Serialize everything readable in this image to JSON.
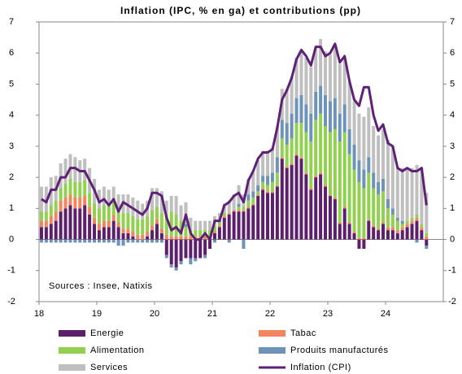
{
  "chart_data": {
    "type": "bar",
    "stacked": true,
    "title": "Inflation (IPC, % en ga) et contributions (pp)",
    "annotation": "Sources : Insee, Natixis",
    "categories": [
      "18",
      null,
      null,
      null,
      null,
      null,
      null,
      null,
      null,
      null,
      null,
      null,
      "19",
      null,
      null,
      null,
      null,
      null,
      null,
      null,
      null,
      null,
      null,
      null,
      "20",
      null,
      null,
      null,
      null,
      null,
      null,
      null,
      null,
      null,
      null,
      null,
      "21",
      null,
      null,
      null,
      null,
      null,
      null,
      null,
      null,
      null,
      null,
      null,
      "22",
      null,
      null,
      null,
      null,
      null,
      null,
      null,
      null,
      null,
      null,
      null,
      "23",
      null,
      null,
      null,
      null,
      null,
      null,
      null,
      null,
      null,
      null,
      null,
      "24",
      null,
      null,
      null,
      null,
      null,
      null,
      null,
      null
    ],
    "series": [
      {
        "name": "Energie",
        "color": "#5b1f6b",
        "values": [
          0.4,
          0.4,
          0.5,
          0.6,
          0.9,
          1.0,
          1.1,
          1.0,
          1.0,
          1.1,
          0.8,
          0.5,
          0.3,
          0.4,
          0.4,
          0.6,
          0.4,
          0.2,
          0.2,
          0.1,
          0.0,
          0.0,
          0.1,
          0.3,
          0.5,
          0.2,
          -0.5,
          -0.8,
          -0.9,
          -0.7,
          -0.6,
          -0.6,
          -0.6,
          -0.6,
          -0.5,
          -0.3,
          0.2,
          0.4,
          0.7,
          0.8,
          0.9,
          0.9,
          0.9,
          1.0,
          1.1,
          1.4,
          1.6,
          1.5,
          1.5,
          1.7,
          2.6,
          2.3,
          2.4,
          2.7,
          2.6,
          2.1,
          1.6,
          2.0,
          2.1,
          1.7,
          1.4,
          1.3,
          0.5,
          1.0,
          0.5,
          0.2,
          -0.3,
          -0.3,
          0.6,
          0.4,
          0.3,
          0.5,
          0.3,
          0.3,
          0.2,
          0.3,
          0.4,
          0.5,
          0.6,
          0.3,
          -0.2
        ]
      },
      {
        "name": "Tabac",
        "color": "#f4845f",
        "values": [
          0.2,
          0.2,
          0.25,
          0.3,
          0.35,
          0.35,
          0.35,
          0.35,
          0.35,
          0.3,
          0.25,
          0.2,
          0.2,
          0.2,
          0.2,
          0.2,
          0.15,
          0.15,
          0.15,
          0.15,
          0.15,
          0.15,
          0.15,
          0.15,
          0.15,
          0.15,
          0.15,
          0.1,
          0.1,
          0.1,
          0.1,
          0.1,
          0.1,
          0.1,
          0.1,
          0.1,
          0.05,
          0.05,
          0.05,
          0.05,
          0.05,
          0.05,
          0.05,
          0.05,
          0.05,
          0.05,
          0.05,
          0.05,
          0.05,
          0.05,
          0.05,
          0.05,
          0.05,
          0.05,
          0.05,
          0.05,
          0.05,
          0.05,
          0.05,
          0.05,
          0.05,
          0.05,
          0.05,
          0.05,
          0.05,
          0.05,
          0.05,
          0.05,
          0.05,
          0.05,
          0.05,
          0.05,
          0.1,
          0.1,
          0.1,
          0.1,
          0.1,
          0.1,
          0.1,
          0.1,
          0.1
        ]
      },
      {
        "name": "Alimentation",
        "color": "#92d050",
        "values": [
          0.3,
          0.3,
          0.35,
          0.35,
          0.4,
          0.45,
          0.5,
          0.5,
          0.5,
          0.5,
          0.45,
          0.45,
          0.5,
          0.5,
          0.5,
          0.4,
          0.4,
          0.5,
          0.5,
          0.5,
          0.5,
          0.5,
          0.5,
          0.5,
          0.4,
          0.5,
          0.6,
          0.8,
          0.7,
          0.5,
          0.3,
          0.2,
          0.2,
          0.2,
          0.2,
          0.2,
          0.2,
          0.1,
          0.1,
          0.0,
          0.0,
          0.1,
          0.1,
          0.2,
          0.2,
          0.1,
          0.2,
          0.2,
          0.3,
          0.4,
          0.6,
          0.7,
          0.8,
          1.0,
          1.1,
          1.3,
          1.5,
          1.8,
          1.9,
          1.9,
          2.0,
          2.2,
          2.6,
          2.4,
          2.2,
          2.0,
          1.8,
          1.6,
          1.5,
          1.2,
          1.1,
          1.0,
          0.6,
          0.4,
          0.3,
          0.1,
          0.1,
          0.1,
          0.1,
          0.1,
          0.1
        ]
      },
      {
        "name": "Produits manufacturés",
        "color": "#6d93b8",
        "values": [
          -0.1,
          -0.1,
          -0.1,
          -0.1,
          -0.1,
          -0.1,
          -0.1,
          -0.1,
          -0.1,
          -0.1,
          -0.1,
          -0.1,
          -0.1,
          -0.1,
          -0.1,
          -0.1,
          -0.2,
          -0.2,
          -0.1,
          -0.1,
          -0.1,
          -0.1,
          -0.1,
          -0.1,
          -0.1,
          -0.1,
          -0.1,
          -0.1,
          -0.1,
          -0.1,
          0.1,
          -0.2,
          -0.1,
          0,
          -0.1,
          0,
          -0.1,
          0.1,
          0,
          -0.1,
          0,
          0.1,
          -0.3,
          0.2,
          0.2,
          0.2,
          0.2,
          0.3,
          0.3,
          0.5,
          0.6,
          0.7,
          0.8,
          0.8,
          0.9,
          0.9,
          0.9,
          0.9,
          0.9,
          1.0,
          1.0,
          1.0,
          0.9,
          0.9,
          0.8,
          0.8,
          0.7,
          0.6,
          0.5,
          0.5,
          0.4,
          0.4,
          0.3,
          0.2,
          0.1,
          0.1,
          0.0,
          0.0,
          -0.1,
          0.0,
          -0.1
        ]
      },
      {
        "name": "Services",
        "color": "#bfbfbf",
        "values": [
          0.8,
          0.8,
          0.9,
          0.8,
          0.8,
          0.8,
          0.8,
          0.8,
          0.7,
          0.7,
          0.8,
          0.8,
          0.6,
          0.6,
          0.5,
          0.5,
          0.5,
          0.6,
          0.6,
          0.6,
          0.6,
          0.5,
          0.5,
          0.7,
          0.6,
          0.7,
          0.5,
          0.5,
          0.6,
          0.5,
          0.7,
          0.4,
          0.3,
          0.3,
          0.3,
          0.3,
          0.3,
          0.2,
          0.3,
          0.4,
          0.5,
          0.6,
          0.4,
          0.5,
          0.6,
          0.8,
          0.8,
          0.8,
          0.8,
          1.0,
          1.0,
          1.1,
          1.2,
          1.3,
          1.4,
          1.5,
          1.5,
          1.4,
          1.5,
          1.4,
          1.5,
          1.7,
          1.6,
          1.5,
          1.5,
          1.4,
          1.5,
          1.7,
          1.6,
          1.5,
          1.5,
          1.6,
          1.9,
          2.0,
          1.6,
          1.7,
          1.7,
          1.6,
          1.6,
          1.8,
          1.3
        ]
      },
      {
        "name": "Inflation (CPI)",
        "color": "#5e2176",
        "type": "line",
        "values": [
          1.3,
          1.2,
          1.6,
          1.6,
          2.0,
          2.0,
          2.3,
          2.3,
          2.2,
          2.2,
          1.9,
          1.6,
          1.2,
          1.3,
          1.1,
          1.3,
          0.9,
          1.2,
          1.1,
          1.0,
          0.9,
          0.8,
          1.0,
          1.5,
          1.5,
          1.4,
          0.7,
          0.3,
          0.4,
          0.2,
          0.8,
          0.2,
          0.0,
          0.0,
          0.2,
          0.0,
          0.6,
          0.6,
          1.1,
          1.2,
          1.4,
          1.5,
          1.2,
          1.9,
          2.2,
          2.6,
          2.8,
          2.8,
          2.9,
          3.6,
          4.5,
          4.8,
          5.2,
          5.8,
          6.1,
          5.9,
          5.6,
          6.2,
          6.2,
          5.9,
          6.0,
          6.3,
          5.7,
          5.9,
          5.1,
          4.5,
          4.3,
          4.9,
          4.9,
          4.0,
          3.5,
          3.7,
          3.1,
          3.0,
          2.3,
          2.2,
          2.3,
          2.2,
          2.2,
          2.3,
          1.1
        ]
      }
    ],
    "ylim": [
      -2,
      7
    ],
    "yticks": [
      -2,
      -1,
      0,
      1,
      2,
      3,
      4,
      5,
      6,
      7
    ],
    "y2lim": [
      -2,
      7
    ],
    "y2ticks": [
      -2,
      -1,
      0,
      1,
      2,
      3,
      4,
      5,
      6,
      7
    ]
  }
}
